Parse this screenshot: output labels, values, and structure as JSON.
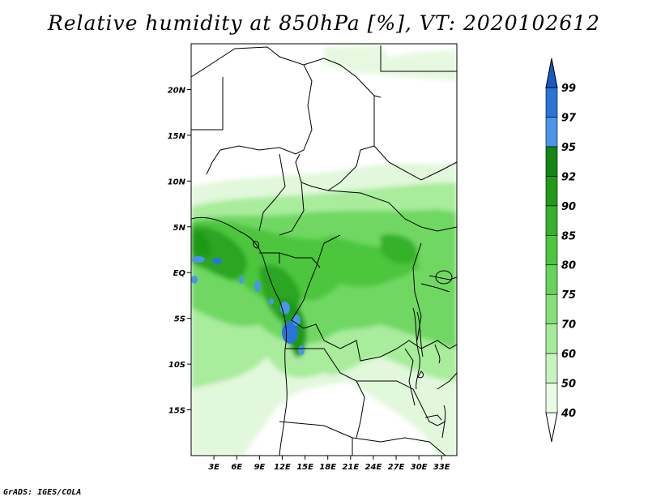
{
  "title": "Relative humidity at 850hPa [%], VT: 2020102612",
  "credit": "GrADS: IGES/COLA",
  "map": {
    "lon_range": [
      0,
      35
    ],
    "lat_range": [
      -20,
      25
    ],
    "lat_ticks": [
      {
        "value": 20,
        "label": "20N"
      },
      {
        "value": 15,
        "label": "15N"
      },
      {
        "value": 10,
        "label": "10N"
      },
      {
        "value": 5,
        "label": "5N"
      },
      {
        "value": 0,
        "label": "EQ"
      },
      {
        "value": -5,
        "label": "5S"
      },
      {
        "value": -10,
        "label": "10S"
      },
      {
        "value": -15,
        "label": "15S"
      }
    ],
    "lon_ticks": [
      {
        "value": 3,
        "label": "3E"
      },
      {
        "value": 6,
        "label": "6E"
      },
      {
        "value": 9,
        "label": "9E"
      },
      {
        "value": 12,
        "label": "12E"
      },
      {
        "value": 15,
        "label": "15E"
      },
      {
        "value": 18,
        "label": "18E"
      },
      {
        "value": 21,
        "label": "21E"
      },
      {
        "value": 24,
        "label": "24E"
      },
      {
        "value": 27,
        "label": "27E"
      },
      {
        "value": 30,
        "label": "30E"
      },
      {
        "value": 33,
        "label": "33E"
      }
    ]
  },
  "colorbar": {
    "levels": [
      "40",
      "50",
      "60",
      "70",
      "75",
      "80",
      "85",
      "90",
      "92",
      "95",
      "97",
      "99"
    ],
    "colors": [
      "#ffffff",
      "#e8fbe3",
      "#c8f3c0",
      "#a6eb9b",
      "#86e07a",
      "#66d45a",
      "#4cc63e",
      "#35b12a",
      "#1f9a19",
      "#128512",
      "#4a95e8",
      "#2a74d8",
      "#1858c0"
    ]
  }
}
